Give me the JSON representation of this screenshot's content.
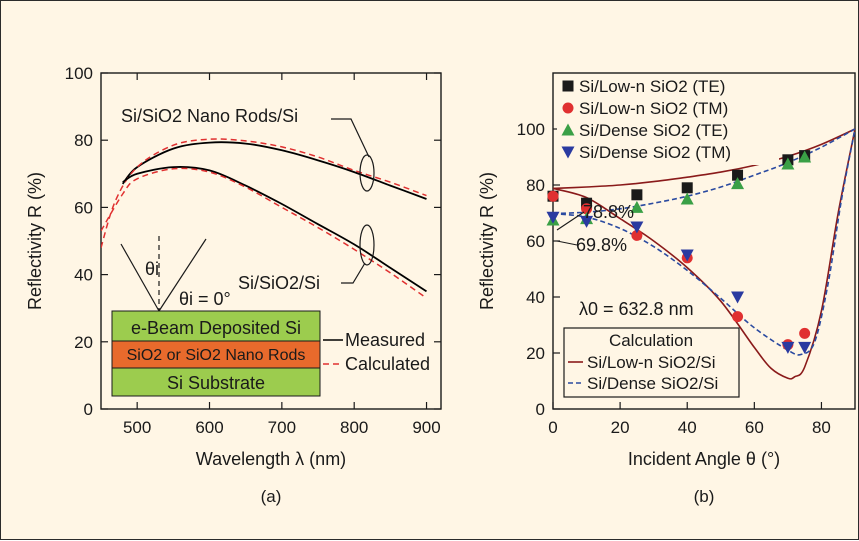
{
  "figure": {
    "background": "#fff6e5",
    "colors": {
      "measured": "#000000",
      "calculated": "#e03030",
      "te_low_n": "#1a1a1a",
      "tm_low_n": "#e03030",
      "te_dense": "#3aa046",
      "tm_dense": "#2a3aa0",
      "calc_low_n": "#8a1a1a",
      "calc_dense": "#2a4aa0",
      "layer_si": "#9ccc4e",
      "layer_sio2": "#e86a2c"
    }
  },
  "chart_data": [
    {
      "type": "line",
      "panel_label": "(a)",
      "xlabel": "Wavelength λ (nm)",
      "ylabel": "Reflectivity R (%)",
      "xlim": [
        450,
        920
      ],
      "ylim": [
        0,
        100
      ],
      "xticks": [
        500,
        600,
        700,
        800,
        900
      ],
      "yticks": [
        0,
        20,
        40,
        60,
        80,
        100
      ],
      "grid": false,
      "annotations": {
        "nano_rods": "Si/SiO2 Nano Rods/Si",
        "sio2_si": "Si/SiO2/Si",
        "theta_i": "θi",
        "theta_eq": "θi = 0°",
        "layer_top": "e-Beam Deposited Si",
        "layer_mid": "SiO2 or SiO2 Nano Rods",
        "layer_bottom": "Si Substrate"
      },
      "legend_labels": [
        "Measured",
        "Calculated"
      ],
      "series": [
        {
          "name": "Measured",
          "group": "Si/SiO2 Nano Rods/Si",
          "style": "solid",
          "x": [
            480,
            500,
            550,
            600,
            650,
            700,
            750,
            800,
            850,
            900
          ],
          "y": [
            67,
            72,
            77.5,
            79.3,
            79.0,
            77.0,
            74.0,
            70.5,
            66.5,
            62.5
          ]
        },
        {
          "name": "Calculated",
          "group": "Si/SiO2 Nano Rods/Si",
          "style": "dashed",
          "x": [
            450,
            470,
            500,
            550,
            600,
            650,
            700,
            750,
            800,
            850,
            900
          ],
          "y": [
            48,
            62,
            72,
            78.5,
            80.3,
            79.8,
            78.0,
            75.0,
            71.0,
            67.5,
            63.5
          ]
        },
        {
          "name": "Measured",
          "group": "Si/SiO2/Si",
          "style": "solid",
          "x": [
            480,
            500,
            550,
            600,
            650,
            700,
            750,
            800,
            850,
            900
          ],
          "y": [
            67.5,
            70.0,
            72.0,
            71.0,
            66.5,
            61.0,
            55.0,
            49.0,
            42.0,
            35.0
          ]
        },
        {
          "name": "Calculated",
          "group": "Si/SiO2/Si",
          "style": "dashed",
          "x": [
            450,
            480,
            500,
            550,
            600,
            650,
            700,
            750,
            800,
            850,
            900
          ],
          "y": [
            53,
            64.0,
            68.5,
            71.5,
            70.5,
            66.0,
            60.0,
            54.0,
            47.5,
            40.5,
            33.0
          ]
        }
      ]
    },
    {
      "type": "scatter",
      "panel_label": "(b)",
      "xlabel": "Incident Angle θ (°)",
      "ylabel": "Reflectivity R (%)",
      "xlim": [
        0,
        90
      ],
      "ylim": [
        0,
        120
      ],
      "xticks": [
        0,
        20,
        40,
        60,
        80
      ],
      "yticks": [
        0,
        20,
        40,
        60,
        80,
        100
      ],
      "grid": false,
      "annotations": {
        "r_low": "78.8%",
        "r_dense": "69.8%",
        "lambda": "λ0 = 632.8 nm"
      },
      "legend_title": "Calculation",
      "legend_placement": "top-left",
      "series": [
        {
          "name": "Si/Low-n SiO2 (TE)",
          "marker": "square",
          "x": [
            0,
            10,
            25,
            40,
            55,
            70,
            75
          ],
          "y": [
            76,
            73.5,
            76.5,
            79,
            83.5,
            89,
            90.5
          ]
        },
        {
          "name": "Si/Low-n SiO2 (TM)",
          "marker": "circle",
          "x": [
            0,
            10,
            25,
            40,
            55,
            70,
            75
          ],
          "y": [
            76,
            71.5,
            62,
            54,
            33,
            23,
            27
          ]
        },
        {
          "name": "Si/Dense SiO2 (TE)",
          "marker": "triangle-up",
          "x": [
            0,
            10,
            25,
            40,
            55,
            70,
            75
          ],
          "y": [
            67.5,
            68,
            72,
            75,
            80.5,
            87.5,
            90
          ]
        },
        {
          "name": "Si/Dense SiO2 (TM)",
          "marker": "triangle-down",
          "x": [
            0,
            10,
            25,
            40,
            55,
            70,
            75
          ],
          "y": [
            68.5,
            67,
            65,
            55,
            40,
            22,
            22
          ]
        },
        {
          "name": "Si/Low-n SiO2/Si",
          "style": "solid",
          "role": "calc-TE",
          "x": [
            0,
            10,
            20,
            30,
            40,
            50,
            60,
            70,
            80,
            90
          ],
          "y": [
            78.8,
            79.3,
            80.0,
            81.2,
            82.8,
            84.6,
            87.0,
            90.2,
            94.5,
            100
          ]
        },
        {
          "name": "Si/Low-n SiO2/Si",
          "style": "solid",
          "role": "calc-TM",
          "x": [
            0,
            10,
            20,
            30,
            40,
            50,
            60,
            65,
            70,
            72,
            75,
            80,
            85,
            90
          ],
          "y": [
            78.8,
            75.5,
            68.0,
            60.0,
            50.5,
            38.5,
            22.0,
            14.5,
            11.0,
            11.5,
            15.0,
            35.0,
            70.0,
            100
          ]
        },
        {
          "name": "Si/Dense SiO2/Si",
          "style": "dashed",
          "role": "calc-TE",
          "x": [
            0,
            10,
            20,
            30,
            40,
            50,
            60,
            70,
            80,
            90
          ],
          "y": [
            69.8,
            70.3,
            71.5,
            73.5,
            76.0,
            79.3,
            83.5,
            88.0,
            93.5,
            100
          ]
        },
        {
          "name": "Si/Dense SiO2/Si",
          "style": "dashed",
          "role": "calc-TM",
          "x": [
            0,
            10,
            20,
            30,
            40,
            50,
            60,
            70,
            74,
            78,
            82,
            86,
            90
          ],
          "y": [
            69.8,
            68.5,
            64.5,
            58.0,
            49.5,
            39.5,
            29.0,
            21.0,
            19.5,
            24.0,
            45.0,
            75.0,
            100
          ]
        }
      ]
    }
  ]
}
